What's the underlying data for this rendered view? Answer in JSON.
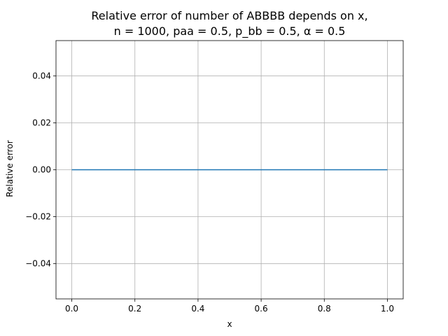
{
  "chart_data": {
    "type": "line",
    "title_line1": "Relative error of number of ABBBB depends on x,",
    "title_line2": "n = 1000, paa = 0.5, p_bb = 0.5, α = 0.5",
    "xlabel": "x",
    "ylabel": "Relative error",
    "xlim": [
      -0.05,
      1.05
    ],
    "ylim": [
      -0.055,
      0.055
    ],
    "grid": true,
    "x_ticks": [
      {
        "value": 0.0,
        "label": "0.0"
      },
      {
        "value": 0.2,
        "label": "0.2"
      },
      {
        "value": 0.4,
        "label": "0.4"
      },
      {
        "value": 0.6,
        "label": "0.6"
      },
      {
        "value": 0.8,
        "label": "0.8"
      },
      {
        "value": 1.0,
        "label": "1.0"
      }
    ],
    "y_ticks": [
      {
        "value": 0.04,
        "label": "0.04"
      },
      {
        "value": 0.02,
        "label": "0.02"
      },
      {
        "value": 0.0,
        "label": "0.00"
      },
      {
        "value": -0.02,
        "label": "−0.02"
      },
      {
        "value": -0.04,
        "label": "−0.04"
      }
    ],
    "series": [
      {
        "color": "#1f77b4",
        "x": [
          0.0,
          0.1,
          0.2,
          0.3,
          0.4,
          0.5,
          0.6,
          0.7,
          0.8,
          0.9,
          1.0
        ],
        "y": [
          0,
          0,
          0,
          0,
          0,
          0,
          0,
          0,
          0,
          0,
          0
        ]
      }
    ]
  }
}
